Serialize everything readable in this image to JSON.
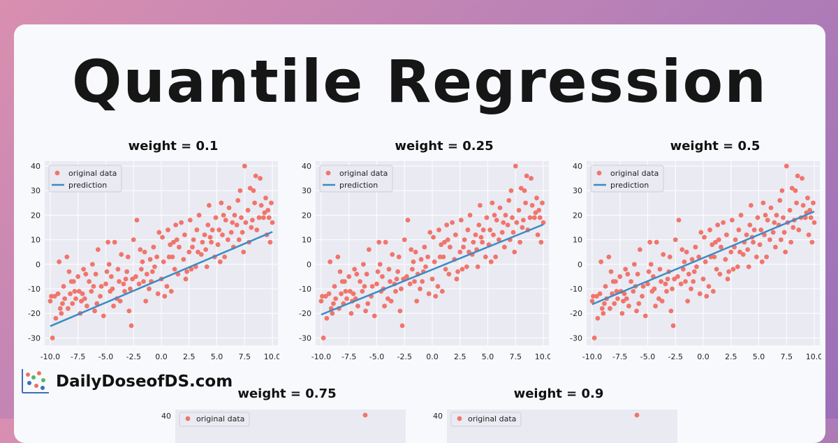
{
  "page": {
    "title": "Quantile Regression",
    "brand": "DailyDoseofDS.com"
  },
  "colors": {
    "data": "#f0756c",
    "line": "#3a8cc4",
    "panel_bg": "#eaeaf2",
    "grid": "#ffffff"
  },
  "chart_data": [
    {
      "type": "scatter",
      "title": "weight = 0.1",
      "legend": [
        "original data",
        "prediction"
      ],
      "legend_position": "top-left",
      "grid": true,
      "xlim": [
        -10.5,
        10.5
      ],
      "ylim": [
        -33,
        42
      ],
      "xticks": [
        "-10.0",
        "-7.5",
        "-5.0",
        "-2.5",
        "0.0",
        "2.5",
        "5.0",
        "7.5",
        "10.0"
      ],
      "yticks": [
        "-30",
        "-20",
        "-10",
        "0",
        "10",
        "20",
        "30",
        "40"
      ],
      "line": {
        "x": [
          -10,
          10
        ],
        "y": [
          -25.2,
          13.2
        ]
      }
    },
    {
      "type": "scatter",
      "title": "weight = 0.25",
      "legend": [
        "original data",
        "prediction"
      ],
      "legend_position": "top-left",
      "grid": true,
      "xlim": [
        -10.5,
        10.5
      ],
      "ylim": [
        -33,
        42
      ],
      "xticks": [
        "-10.0",
        "-7.5",
        "-5.0",
        "-2.5",
        "0.0",
        "2.5",
        "5.0",
        "7.5",
        "10.0"
      ],
      "yticks": [
        "-30",
        "-20",
        "-10",
        "0",
        "10",
        "20",
        "30",
        "40"
      ],
      "line": {
        "x": [
          -10,
          10
        ],
        "y": [
          -20.5,
          16.2
        ]
      }
    },
    {
      "type": "scatter",
      "title": "weight = 0.5",
      "legend": [
        "original data",
        "prediction"
      ],
      "legend_position": "top-left",
      "grid": true,
      "xlim": [
        -10.5,
        10.5
      ],
      "ylim": [
        -33,
        42
      ],
      "xticks": [
        "-10.0",
        "-7.5",
        "-5.0",
        "-2.5",
        "0.0",
        "2.5",
        "5.0",
        "7.5",
        "10.0"
      ],
      "yticks": [
        "-30",
        "-20",
        "-10",
        "0",
        "10",
        "20",
        "30",
        "40"
      ],
      "line": {
        "x": [
          -10,
          10
        ],
        "y": [
          -16.3,
          21.5
        ]
      }
    },
    {
      "type": "scatter",
      "title": "weight = 0.75",
      "legend": [
        "original data"
      ],
      "ytick_top": "40"
    },
    {
      "type": "scatter",
      "title": "weight = 0.9",
      "legend": [
        "original data"
      ],
      "ytick_top": "40"
    }
  ],
  "points": [
    [
      -10,
      -15
    ],
    [
      -9.8,
      -30
    ],
    [
      -9.6,
      -13
    ],
    [
      -9.5,
      -22
    ],
    [
      -9.3,
      -12
    ],
    [
      -9.2,
      1
    ],
    [
      -9,
      -20
    ],
    [
      -8.8,
      -9
    ],
    [
      -8.7,
      -14
    ],
    [
      -8.5,
      3
    ],
    [
      -8.4,
      -18
    ],
    [
      -8.2,
      -12
    ],
    [
      -8.1,
      -7
    ],
    [
      -8,
      -16
    ],
    [
      -7.8,
      -11
    ],
    [
      -7.7,
      -14
    ],
    [
      -7.5,
      -5
    ],
    [
      -7.4,
      -11
    ],
    [
      -7.3,
      -20
    ],
    [
      -7.1,
      -12
    ],
    [
      -7,
      -2
    ],
    [
      -6.9,
      -14
    ],
    [
      -6.7,
      -17
    ],
    [
      -6.5,
      -7
    ],
    [
      -6.3,
      -11
    ],
    [
      -6.2,
      0
    ],
    [
      -6,
      -19
    ],
    [
      -5.9,
      -4
    ],
    [
      -5.7,
      6
    ],
    [
      -5.5,
      -13
    ],
    [
      -5.4,
      -9
    ],
    [
      -5.2,
      -21
    ],
    [
      -5,
      -8
    ],
    [
      -4.9,
      -3
    ],
    [
      -4.8,
      9
    ],
    [
      -4.6,
      -11
    ],
    [
      -4.5,
      -5
    ],
    [
      -4.3,
      -17
    ],
    [
      -4.2,
      9
    ],
    [
      -4,
      -14
    ],
    [
      -3.9,
      -2
    ],
    [
      -3.8,
      -7
    ],
    [
      -3.6,
      4
    ],
    [
      -3.4,
      -8
    ],
    [
      -3.3,
      -11
    ],
    [
      -3.1,
      -3
    ],
    [
      -3,
      3
    ],
    [
      -2.9,
      -19
    ],
    [
      -2.7,
      -25
    ],
    [
      -2.6,
      -6
    ],
    [
      -2.5,
      10
    ],
    [
      -2.3,
      -5
    ],
    [
      -2.2,
      18
    ],
    [
      -2,
      -8
    ],
    [
      -1.8,
      -2
    ],
    [
      -1.7,
      1
    ],
    [
      -1.6,
      -7
    ],
    [
      -1.5,
      5
    ],
    [
      -1.3,
      -4
    ],
    [
      -1.1,
      -10
    ],
    [
      -1,
      2
    ],
    [
      -0.9,
      -7
    ],
    [
      -0.7,
      7
    ],
    [
      -0.6,
      -1
    ],
    [
      -0.4,
      3
    ],
    [
      -0.2,
      13
    ],
    [
      0,
      -6
    ],
    [
      0.1,
      11
    ],
    [
      0.3,
      -13
    ],
    [
      0.5,
      -9
    ],
    [
      0.6,
      14
    ],
    [
      0.7,
      3
    ],
    [
      0.9,
      -11
    ],
    [
      1,
      3
    ],
    [
      1.2,
      -2
    ],
    [
      1.3,
      16
    ],
    [
      1.5,
      -4
    ],
    [
      1.6,
      7
    ],
    [
      1.8,
      17
    ],
    [
      2,
      2
    ],
    [
      2.1,
      12
    ],
    [
      2.3,
      -3
    ],
    [
      2.5,
      5
    ],
    [
      2.6,
      18
    ],
    [
      2.8,
      7
    ],
    [
      2.9,
      10
    ],
    [
      3.1,
      -1
    ],
    [
      3.2,
      14
    ],
    [
      3.4,
      20
    ],
    [
      3.6,
      4
    ],
    [
      3.7,
      9
    ],
    [
      3.9,
      12
    ],
    [
      4,
      6
    ],
    [
      4.2,
      16
    ],
    [
      4.3,
      24
    ],
    [
      4.5,
      9
    ],
    [
      4.6,
      14
    ],
    [
      4.8,
      3
    ],
    [
      4.9,
      19
    ],
    [
      5.1,
      8
    ],
    [
      5.2,
      14
    ],
    [
      5.4,
      25
    ],
    [
      5.5,
      12
    ],
    [
      5.7,
      3
    ],
    [
      5.8,
      18
    ],
    [
      6,
      10
    ],
    [
      6.1,
      23
    ],
    [
      6.3,
      13
    ],
    [
      6.5,
      7
    ],
    [
      6.6,
      20
    ],
    [
      6.8,
      16
    ],
    [
      6.9,
      26
    ],
    [
      7,
      10
    ],
    [
      7.2,
      19
    ],
    [
      7.3,
      13
    ],
    [
      7.5,
      40
    ],
    [
      7.6,
      17
    ],
    [
      7.8,
      22
    ],
    [
      7.9,
      9
    ],
    [
      8,
      31
    ],
    [
      8.2,
      18
    ],
    [
      8.3,
      30
    ],
    [
      8.5,
      36
    ],
    [
      8.6,
      14
    ],
    [
      8.8,
      19
    ],
    [
      8.9,
      35
    ],
    [
      9,
      24
    ],
    [
      9.2,
      19
    ],
    [
      9.4,
      27
    ],
    [
      9.5,
      12
    ],
    [
      9.7,
      19
    ],
    [
      9.8,
      9
    ],
    [
      9.9,
      25
    ],
    [
      10,
      17
    ],
    [
      -9.9,
      -13
    ],
    [
      -8.9,
      -16
    ],
    [
      -7.9,
      -7
    ],
    [
      -6.8,
      -4
    ],
    [
      -5.8,
      -16
    ],
    [
      -4.7,
      0
    ],
    [
      -3.7,
      -15
    ],
    [
      -2.8,
      -10
    ],
    [
      -1.9,
      6
    ],
    [
      -0.8,
      -3
    ],
    [
      0.2,
      1
    ],
    [
      1.1,
      9
    ],
    [
      2.2,
      -6
    ],
    [
      3.3,
      5
    ],
    [
      4.4,
      11
    ],
    [
      5.3,
      1
    ],
    [
      6.4,
      17
    ],
    [
      7.4,
      5
    ],
    [
      8.4,
      25
    ],
    [
      9.3,
      21
    ],
    [
      -9.1,
      -18
    ],
    [
      -6.1,
      -9
    ],
    [
      -3.2,
      -6
    ],
    [
      -0.3,
      -12
    ],
    [
      2.7,
      -2
    ],
    [
      5.6,
      20
    ],
    [
      8.1,
      15
    ],
    [
      9.6,
      22
    ],
    [
      -8.3,
      -3
    ],
    [
      -4.4,
      -10
    ],
    [
      -1.4,
      -15
    ],
    [
      1.4,
      10
    ],
    [
      4.1,
      -1
    ],
    [
      7.1,
      30
    ],
    [
      -7.2,
      -15
    ],
    [
      0.8,
      8
    ]
  ]
}
